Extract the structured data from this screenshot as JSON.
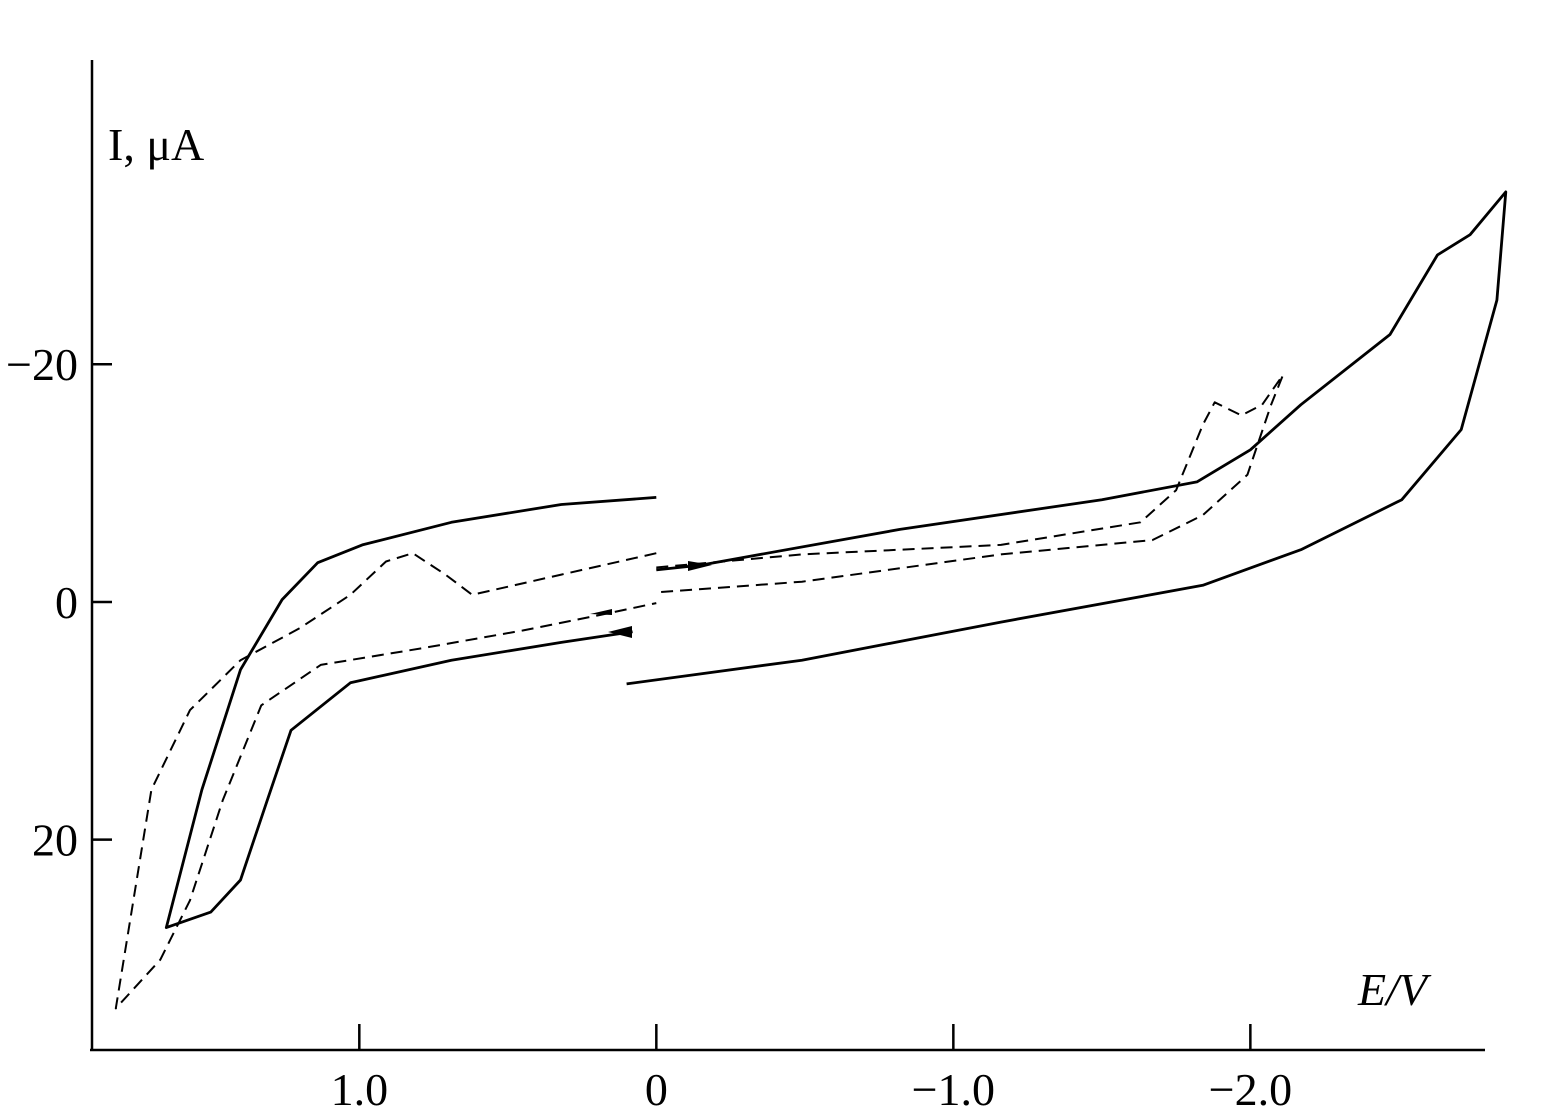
{
  "chart_data": {
    "type": "line",
    "y_label": "I, μA",
    "x_label": "E/V",
    "xlim": [
      1.9,
      -2.79
    ],
    "ylim": [
      37.7,
      -45.6
    ],
    "xticks": [
      {
        "value": 1.0,
        "label": "1.0"
      },
      0,
      {
        "value": -1.0,
        "label": "−1.0"
      },
      {
        "value": -2.0,
        "label": "−2.0"
      }
    ],
    "yticks": [
      {
        "value": -20,
        "label": "−20"
      },
      0,
      20
    ],
    "series": [
      {
        "color": "#000000",
        "line_style": "solid",
        "x": [
          0,
          0.32,
          0.69,
          0.99,
          1.14,
          1.26,
          1.4,
          1.53,
          1.65,
          1.5,
          1.4,
          1.31,
          1.23,
          1.03,
          0.69,
          0.32,
          0.08,
          null,
          0,
          -0.15,
          -0.82,
          -1.5,
          -1.82,
          -2.0,
          -2.17,
          -2.47,
          -2.63,
          -2.74,
          -2.86,
          -2.83,
          -2.71,
          -2.51,
          -2.17,
          -1.84,
          -1.16,
          -0.49,
          0.1
        ],
        "values": [
          -8.8,
          -8.2,
          -6.7,
          -4.8,
          -3.3,
          -0.2,
          5.7,
          15.8,
          27.4,
          26.1,
          23.4,
          16.7,
          10.8,
          6.8,
          4.9,
          3.4,
          2.5,
          null,
          -2.7,
          -3.1,
          -6.1,
          -8.6,
          -10.1,
          -12.8,
          -16.6,
          -22.5,
          -29.2,
          -30.9,
          -34.5,
          -25.4,
          -14.5,
          -8.6,
          -4.4,
          -1.4,
          1.7,
          4.9,
          6.9
        ]
      },
      {
        "color": "#000000",
        "line_style": "dashed",
        "x": [
          0,
          0.32,
          0.62,
          0.71,
          0.82,
          0.91,
          1.03,
          1.2,
          1.4,
          1.57,
          1.7,
          1.82,
          1.67,
          1.57,
          1.46,
          1.33,
          1.13,
          0.79,
          0.45,
          0.19,
          0,
          null,
          0,
          -0.49,
          -1.16,
          -1.63,
          -1.75,
          -1.84,
          -1.88,
          -1.97,
          -2.04,
          -2.11,
          -2.07,
          -1.99,
          -1.84,
          -1.67,
          -1.16,
          -0.49,
          0
        ],
        "values": [
          -4.1,
          -2.3,
          -0.6,
          -2.3,
          -4.1,
          -3.4,
          -0.6,
          2.2,
          4.9,
          9.1,
          15.8,
          34.2,
          30.1,
          25.1,
          16.7,
          8.7,
          5.3,
          3.9,
          2.4,
          1.1,
          0.1,
          null,
          -2.9,
          -4.0,
          -4.8,
          -6.7,
          -9.4,
          -14.9,
          -16.8,
          -15.7,
          -16.6,
          -19.1,
          -16.6,
          -10.7,
          -7.3,
          -5.2,
          -4.0,
          -1.7,
          -0.8
        ]
      }
    ]
  }
}
